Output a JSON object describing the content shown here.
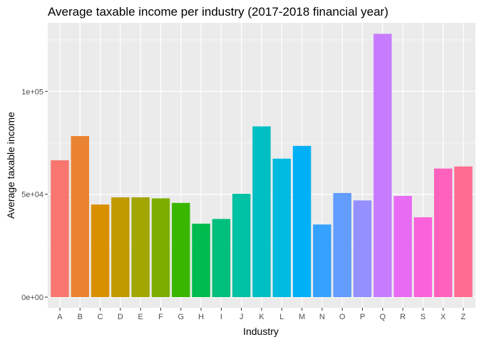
{
  "chart_data": {
    "type": "bar",
    "title": "Average taxable income per industry (2017-2018 financial year)",
    "xlabel": "Industry",
    "ylabel": "Average taxable income",
    "ylim": [
      0,
      128500
    ],
    "yticks": [
      {
        "value": 0,
        "label": "0e+00"
      },
      {
        "value": 50000,
        "label": "5e+04"
      },
      {
        "value": 100000,
        "label": "1e+05"
      }
    ],
    "grid": true,
    "legend": "none",
    "categories": [
      "A",
      "B",
      "C",
      "D",
      "E",
      "F",
      "G",
      "H",
      "I",
      "J",
      "K",
      "L",
      "M",
      "N",
      "O",
      "P",
      "Q",
      "R",
      "S",
      "X",
      "Z"
    ],
    "values": [
      66500,
      78300,
      45000,
      48500,
      48500,
      48000,
      45800,
      35700,
      38000,
      50200,
      83000,
      67300,
      73500,
      35300,
      50600,
      47000,
      128000,
      49200,
      38800,
      62500,
      63500
    ],
    "colors": [
      "#F8766D",
      "#EA8331",
      "#D89000",
      "#C09B00",
      "#A3A500",
      "#7CAE00",
      "#39B600",
      "#00BB4E",
      "#00BF7D",
      "#00C1A3",
      "#00BFC4",
      "#00BAE0",
      "#00B0F6",
      "#35A2FF",
      "#619CFF",
      "#9590FF",
      "#C77CFF",
      "#E76BF3",
      "#FA62DB",
      "#FF62BC",
      "#FF6C91"
    ]
  }
}
